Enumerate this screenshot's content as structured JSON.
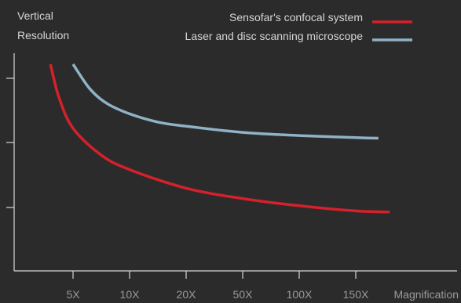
{
  "chart_data": {
    "type": "line",
    "ylabel_line1": "Vertical",
    "ylabel_line2": "Resolution",
    "xlabel": "Magnification",
    "categories": [
      "5X",
      "10X",
      "20X",
      "50X",
      "100X",
      "150X"
    ],
    "y_axis_ticks": 3,
    "grid": false,
    "legend_position": "top-right",
    "series": [
      {
        "name": "Sensofar's confocal system",
        "color": "#d4212b",
        "x": [
          0.6,
          0.75,
          1.0,
          1.5,
          2.0,
          3.0,
          4.0,
          5.0,
          6.0,
          6.6
        ],
        "values": [
          10.0,
          8.4,
          6.9,
          5.6,
          4.9,
          4.0,
          3.5,
          3.15,
          2.9,
          2.85
        ]
      },
      {
        "name": "Laser and disc scanning microscope",
        "color": "#8fb2c6",
        "x": [
          1.0,
          1.3,
          1.6,
          2.0,
          2.5,
          3.0,
          4.0,
          5.0,
          6.0,
          6.4
        ],
        "values": [
          10.0,
          8.8,
          8.1,
          7.6,
          7.2,
          7.0,
          6.7,
          6.55,
          6.45,
          6.42
        ]
      }
    ]
  }
}
